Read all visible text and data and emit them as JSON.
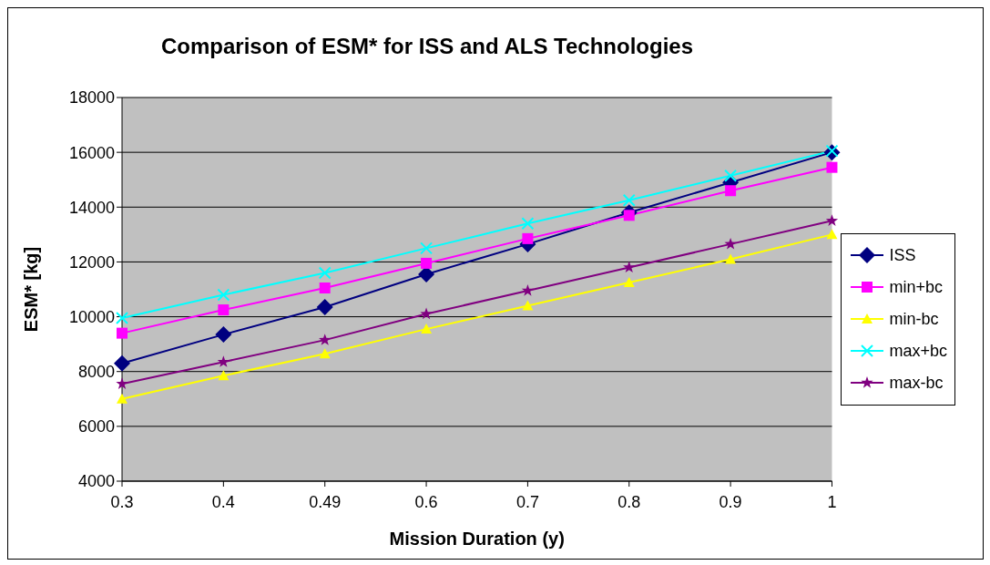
{
  "chart_data": {
    "type": "line",
    "title": "Comparison of ESM* for ISS and ALS Technologies",
    "xlabel": "Mission Duration (y)",
    "ylabel": "ESM* [kg]",
    "categories": [
      "0.3",
      "0.4",
      "0.49",
      "0.6",
      "0.7",
      "0.8",
      "0.9",
      "1"
    ],
    "series": [
      {
        "name": "ISS",
        "color": "#000080",
        "marker": "diamond",
        "values": [
          8300,
          9350,
          10350,
          11550,
          12650,
          13800,
          14900,
          16000
        ]
      },
      {
        "name": "min+bc",
        "color": "#ff00ff",
        "marker": "square",
        "values": [
          9400,
          10250,
          11050,
          11950,
          12850,
          13700,
          14600,
          15450
        ]
      },
      {
        "name": "min-bc",
        "color": "#ffff00",
        "marker": "triangle",
        "values": [
          7000,
          7850,
          8650,
          9550,
          10400,
          11250,
          12100,
          13000
        ]
      },
      {
        "name": "max+bc",
        "color": "#00ffff",
        "marker": "cross",
        "values": [
          9950,
          10800,
          11600,
          12500,
          13400,
          14250,
          15150,
          16050
        ]
      },
      {
        "name": "max-bc",
        "color": "#800080",
        "marker": "star",
        "values": [
          7550,
          8350,
          9150,
          10100,
          10950,
          11800,
          12650,
          13500
        ]
      }
    ],
    "ylim": [
      4000,
      18000
    ],
    "yticks": [
      4000,
      6000,
      8000,
      10000,
      12000,
      14000,
      16000,
      18000
    ],
    "grid": "y",
    "legend": "right",
    "line_style": "solid"
  }
}
